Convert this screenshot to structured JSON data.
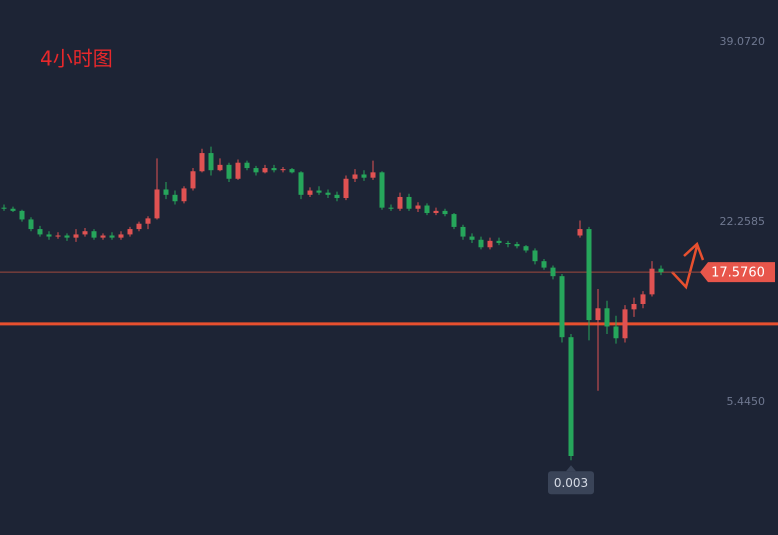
{
  "chart_data": {
    "type": "candlestick",
    "title": "4小时图",
    "ylim": [
      -6.98,
      43.0
    ],
    "yticks": [
      {
        "value": 39.072,
        "label": "39.0720"
      },
      {
        "value": 22.2585,
        "label": "22.2585"
      },
      {
        "value": 5.445,
        "label": "5.4450"
      }
    ],
    "up_color": "#e05252",
    "down_color": "#26a65b",
    "last_price": {
      "value": 17.576,
      "label": "17.5760"
    },
    "low_label": {
      "value": 0.003,
      "label": "0.003"
    },
    "support_line": 12.74,
    "ohlc": [
      [
        23.6,
        23.9,
        23.3,
        23.5
      ],
      [
        23.5,
        23.7,
        23.2,
        23.3
      ],
      [
        23.3,
        23.4,
        22.3,
        22.5
      ],
      [
        22.5,
        22.7,
        21.4,
        21.6
      ],
      [
        21.6,
        21.9,
        20.9,
        21.1
      ],
      [
        21.1,
        21.4,
        20.6,
        20.9
      ],
      [
        20.9,
        21.3,
        20.7,
        21.0
      ],
      [
        21.0,
        21.2,
        20.5,
        20.8
      ],
      [
        20.8,
        21.6,
        20.4,
        21.1
      ],
      [
        21.1,
        21.7,
        20.9,
        21.4
      ],
      [
        21.4,
        21.6,
        20.6,
        20.8
      ],
      [
        20.8,
        21.2,
        20.6,
        21.0
      ],
      [
        21.0,
        21.3,
        20.6,
        20.8
      ],
      [
        20.8,
        21.4,
        20.6,
        21.1
      ],
      [
        21.1,
        21.8,
        20.9,
        21.6
      ],
      [
        21.6,
        22.3,
        21.4,
        22.1
      ],
      [
        22.1,
        22.8,
        21.6,
        22.6
      ],
      [
        22.6,
        28.2,
        22.5,
        25.3
      ],
      [
        25.3,
        26.0,
        24.4,
        24.8
      ],
      [
        24.8,
        25.2,
        23.9,
        24.2
      ],
      [
        24.2,
        25.6,
        24.0,
        25.4
      ],
      [
        25.4,
        27.3,
        25.2,
        27.0
      ],
      [
        27.0,
        29.1,
        26.9,
        28.7
      ],
      [
        28.7,
        29.3,
        26.6,
        27.1
      ],
      [
        27.1,
        28.2,
        27.0,
        27.6
      ],
      [
        27.6,
        27.8,
        26.0,
        26.3
      ],
      [
        26.3,
        28.1,
        26.2,
        27.8
      ],
      [
        27.8,
        28.0,
        27.1,
        27.3
      ],
      [
        27.3,
        27.5,
        26.6,
        26.9
      ],
      [
        26.9,
        27.6,
        26.8,
        27.3
      ],
      [
        27.3,
        27.6,
        26.9,
        27.1
      ],
      [
        27.1,
        27.4,
        26.9,
        27.2
      ],
      [
        27.2,
        27.3,
        26.8,
        26.9
      ],
      [
        26.9,
        27.0,
        24.4,
        24.8
      ],
      [
        24.8,
        25.5,
        24.6,
        25.2
      ],
      [
        25.2,
        25.6,
        24.8,
        25.0
      ],
      [
        25.0,
        25.3,
        24.5,
        24.8
      ],
      [
        24.8,
        25.1,
        24.2,
        24.5
      ],
      [
        24.5,
        26.6,
        24.3,
        26.3
      ],
      [
        26.3,
        27.2,
        26.0,
        26.7
      ],
      [
        26.7,
        27.1,
        26.1,
        26.4
      ],
      [
        26.4,
        28.0,
        26.2,
        26.9
      ],
      [
        26.9,
        27.0,
        23.4,
        23.6
      ],
      [
        23.6,
        23.9,
        23.3,
        23.5
      ],
      [
        23.5,
        25.0,
        23.3,
        24.6
      ],
      [
        24.6,
        24.9,
        23.3,
        23.5
      ],
      [
        23.5,
        24.1,
        23.2,
        23.8
      ],
      [
        23.8,
        24.0,
        22.9,
        23.1
      ],
      [
        23.1,
        23.6,
        22.9,
        23.3
      ],
      [
        23.3,
        23.5,
        22.8,
        23.0
      ],
      [
        23.0,
        23.1,
        21.6,
        21.8
      ],
      [
        21.8,
        22.0,
        20.6,
        20.9
      ],
      [
        20.9,
        21.2,
        20.3,
        20.6
      ],
      [
        20.6,
        20.9,
        19.7,
        19.9
      ],
      [
        19.9,
        20.8,
        19.7,
        20.5
      ],
      [
        20.5,
        20.8,
        20.1,
        20.3
      ],
      [
        20.3,
        20.5,
        19.9,
        20.2
      ],
      [
        20.2,
        20.4,
        19.8,
        20.0
      ],
      [
        20.0,
        20.1,
        19.4,
        19.6
      ],
      [
        19.6,
        19.8,
        18.3,
        18.6
      ],
      [
        18.6,
        18.8,
        17.8,
        18.0
      ],
      [
        18.0,
        18.2,
        16.9,
        17.2
      ],
      [
        17.2,
        17.4,
        11.0,
        11.5
      ],
      [
        11.5,
        11.8,
        0.003,
        0.4
      ],
      [
        21.0,
        22.4,
        20.8,
        21.6
      ],
      [
        21.6,
        21.8,
        11.2,
        13.1
      ],
      [
        13.1,
        16.0,
        6.5,
        14.2
      ],
      [
        14.2,
        14.9,
        11.8,
        12.5
      ],
      [
        12.5,
        13.5,
        10.9,
        11.4
      ],
      [
        11.4,
        14.5,
        11.0,
        14.1
      ],
      [
        14.1,
        15.2,
        13.4,
        14.6
      ],
      [
        14.6,
        15.8,
        14.2,
        15.5
      ],
      [
        15.5,
        18.6,
        15.3,
        17.9
      ],
      [
        17.9,
        18.2,
        17.3,
        17.576
      ]
    ]
  }
}
